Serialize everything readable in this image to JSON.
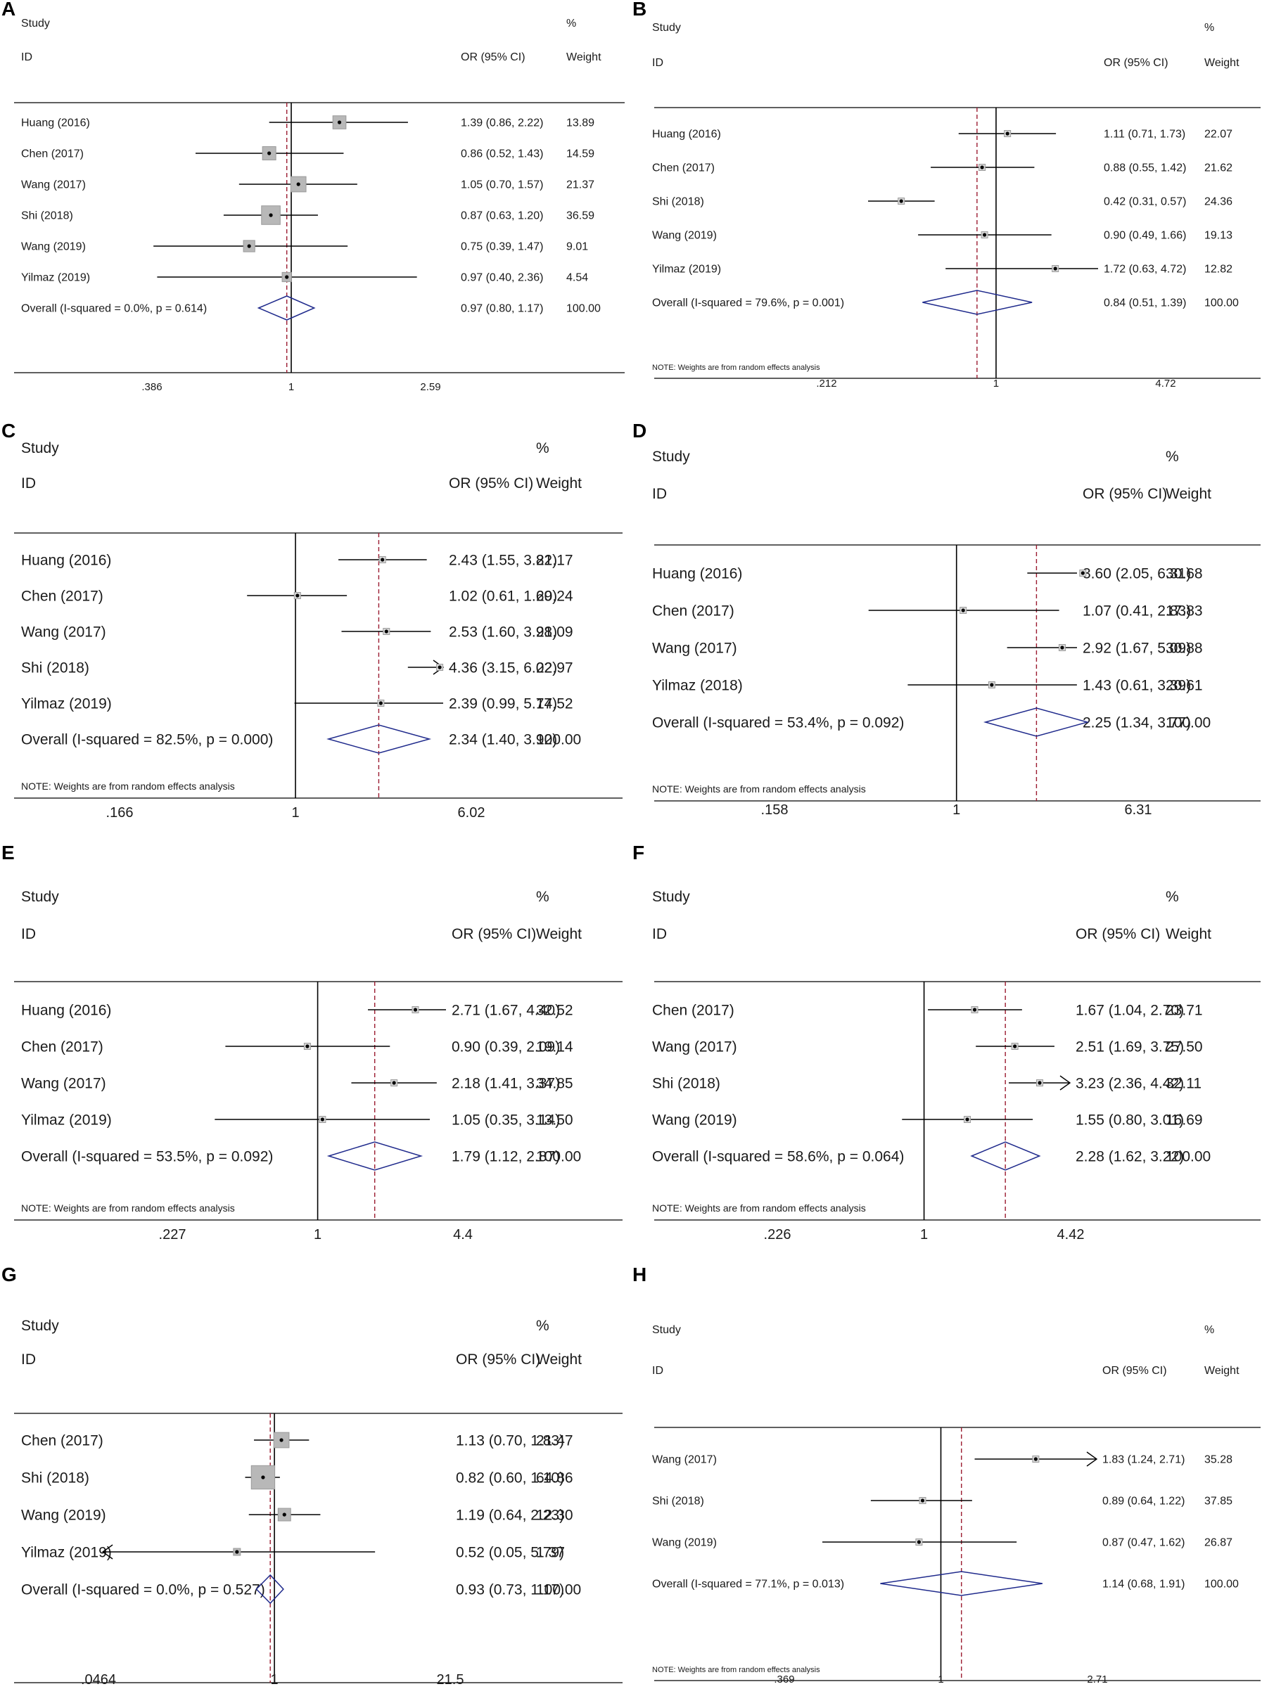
{
  "chart_data": [
    {
      "type": "forest",
      "panel": "A",
      "style": "small",
      "headers": {
        "study": "Study",
        "id": "ID",
        "or": "OR (95% CI)",
        "pct": "%",
        "weight": "Weight"
      },
      "studies": [
        {
          "name": "Huang (2016)",
          "or": 1.39,
          "lo": 0.86,
          "hi": 2.22,
          "label": "1.39 (0.86, 2.22)",
          "weight": 13.89,
          "weight_label": "13.89",
          "marker": "box"
        },
        {
          "name": "Chen (2017)",
          "or": 0.86,
          "lo": 0.52,
          "hi": 1.43,
          "label": "0.86 (0.52, 1.43)",
          "weight": 14.59,
          "weight_label": "14.59",
          "marker": "box"
        },
        {
          "name": "Wang (2017)",
          "or": 1.05,
          "lo": 0.7,
          "hi": 1.57,
          "label": "1.05 (0.70, 1.57)",
          "weight": 21.37,
          "weight_label": "21.37",
          "marker": "box"
        },
        {
          "name": "Shi (2018)",
          "or": 0.87,
          "lo": 0.63,
          "hi": 1.2,
          "label": "0.87 (0.63, 1.20)",
          "weight": 36.59,
          "weight_label": "36.59",
          "marker": "box"
        },
        {
          "name": "Wang (2019)",
          "or": 0.75,
          "lo": 0.39,
          "hi": 1.47,
          "label": "0.75 (0.39, 1.47)",
          "weight": 9.01,
          "weight_label": "9.01",
          "marker": "box"
        },
        {
          "name": "Yilmaz (2019)",
          "or": 0.97,
          "lo": 0.4,
          "hi": 2.36,
          "label": "0.97 (0.40, 2.36)",
          "weight": 4.54,
          "weight_label": "4.54",
          "marker": "box"
        }
      ],
      "overall": {
        "label": "Overall  (I-squared = 0.0%, p = 0.614)",
        "or": 0.97,
        "lo": 0.8,
        "hi": 1.17,
        "or_label": "0.97 (0.80, 1.17)",
        "weight_label": "100.00"
      },
      "note": "",
      "axis": {
        "min": 0.386,
        "max": 2.59,
        "ticks": [
          ".386",
          "1",
          "2.59"
        ]
      }
    },
    {
      "type": "forest",
      "panel": "B",
      "style": "small",
      "headers": {
        "study": "Study",
        "id": "ID",
        "or": "OR (95% CI)",
        "pct": "%",
        "weight": "Weight"
      },
      "studies": [
        {
          "name": "Huang (2016)",
          "or": 1.11,
          "lo": 0.71,
          "hi": 1.73,
          "label": "1.11 (0.71, 1.73)",
          "weight": 22.07,
          "weight_label": "22.07",
          "marker": "dot"
        },
        {
          "name": "Chen (2017)",
          "or": 0.88,
          "lo": 0.55,
          "hi": 1.42,
          "label": "0.88 (0.55, 1.42)",
          "weight": 21.62,
          "weight_label": "21.62",
          "marker": "dot"
        },
        {
          "name": "Shi (2018)",
          "or": 0.42,
          "lo": 0.31,
          "hi": 0.57,
          "label": "0.42 (0.31, 0.57)",
          "weight": 24.36,
          "weight_label": "24.36",
          "marker": "dot"
        },
        {
          "name": "Wang (2019)",
          "or": 0.9,
          "lo": 0.49,
          "hi": 1.66,
          "label": "0.90 (0.49, 1.66)",
          "weight": 19.13,
          "weight_label": "19.13",
          "marker": "dot"
        },
        {
          "name": "Yilmaz (2019)",
          "or": 1.72,
          "lo": 0.63,
          "hi": 4.72,
          "label": "1.72 (0.63, 4.72)",
          "weight": 12.82,
          "weight_label": "12.82",
          "marker": "dot"
        }
      ],
      "overall": {
        "label": "Overall  (I-squared = 79.6%, p = 0.001)",
        "or": 0.84,
        "lo": 0.51,
        "hi": 1.39,
        "or_label": "0.84 (0.51, 1.39)",
        "weight_label": "100.00"
      },
      "note": "NOTE: Weights are from random effects analysis",
      "axis": {
        "min": 0.212,
        "max": 4.72,
        "ticks": [
          ".212",
          "1",
          "4.72"
        ]
      }
    },
    {
      "type": "forest",
      "panel": "C",
      "style": "large",
      "headers": {
        "study": "Study",
        "id": "ID",
        "or": "OR (95% CI)",
        "pct": "%",
        "weight": "Weight"
      },
      "studies": [
        {
          "name": "Huang (2016)",
          "or": 2.43,
          "lo": 1.55,
          "hi": 3.82,
          "label": "2.43 (1.55, 3.82)",
          "weight": 21.17,
          "weight_label": "21.17",
          "marker": "dot"
        },
        {
          "name": "Chen (2017)",
          "or": 1.02,
          "lo": 0.61,
          "hi": 1.69,
          "label": "1.02 (0.61, 1.69)",
          "weight": 20.24,
          "weight_label": "20.24",
          "marker": "dot"
        },
        {
          "name": "Wang (2017)",
          "or": 2.53,
          "lo": 1.6,
          "hi": 3.98,
          "label": "2.53 (1.60, 3.98)",
          "weight": 21.09,
          "weight_label": "21.09",
          "marker": "dot"
        },
        {
          "name": "Shi (2018)",
          "or": 4.36,
          "lo": 3.15,
          "hi": 6.02,
          "label": "4.36 (3.15, 6.02)",
          "weight": 22.97,
          "weight_label": "22.97",
          "marker": "dot",
          "arrow": "right"
        },
        {
          "name": "Yilmaz (2019)",
          "or": 2.39,
          "lo": 0.99,
          "hi": 5.77,
          "label": "2.39 (0.99, 5.77)",
          "weight": 14.52,
          "weight_label": "14.52",
          "marker": "dot"
        }
      ],
      "overall": {
        "label": "Overall  (I-squared = 82.5%, p = 0.000)",
        "or": 2.34,
        "lo": 1.4,
        "hi": 3.92,
        "or_label": "2.34 (1.40, 3.92)",
        "weight_label": "100.00"
      },
      "note": "NOTE: Weights are from random effects analysis",
      "axis": {
        "min": 0.166,
        "max": 6.02,
        "ticks": [
          ".166",
          "1",
          "6.02"
        ]
      }
    },
    {
      "type": "forest",
      "panel": "D",
      "style": "large",
      "headers": {
        "study": "Study",
        "id": "ID",
        "or": "OR (95% CI)",
        "pct": "%",
        "weight": "Weight"
      },
      "studies": [
        {
          "name": "Huang (2016)",
          "or": 3.6,
          "lo": 2.05,
          "hi": 6.31,
          "label": "3.60 (2.05, 6.31)",
          "weight": 30.68,
          "weight_label": "30.68",
          "marker": "dot"
        },
        {
          "name": "Chen (2017)",
          "or": 1.07,
          "lo": 0.41,
          "hi": 2.83,
          "label": "1.07 (0.41, 2.83)",
          "weight": 17.83,
          "weight_label": "17.83",
          "marker": "dot"
        },
        {
          "name": "Wang (2017)",
          "or": 2.92,
          "lo": 1.67,
          "hi": 5.09,
          "label": "2.92 (1.67, 5.09)",
          "weight": 30.88,
          "weight_label": "30.88",
          "marker": "dot"
        },
        {
          "name": "Yilmaz (2018)",
          "or": 1.43,
          "lo": 0.61,
          "hi": 3.39,
          "label": "1.43 (0.61, 3.39)",
          "weight": 20.61,
          "weight_label": "20.61",
          "marker": "dot"
        }
      ],
      "overall": {
        "label": "Overall  (I-squared = 53.4%, p = 0.092)",
        "or": 2.25,
        "lo": 1.34,
        "hi": 3.77,
        "or_label": "2.25 (1.34, 3.77)",
        "weight_label": "100.00"
      },
      "note": "NOTE: Weights are from random effects analysis",
      "axis": {
        "min": 0.158,
        "max": 6.31,
        "ticks": [
          ".158",
          "1",
          "6.31"
        ]
      }
    },
    {
      "type": "forest",
      "panel": "E",
      "style": "large",
      "headers": {
        "study": "Study",
        "id": "ID",
        "or": "OR (95% CI)",
        "pct": "%",
        "weight": "Weight"
      },
      "studies": [
        {
          "name": "Huang (2016)",
          "or": 2.71,
          "lo": 1.67,
          "hi": 4.4,
          "label": "2.71 (1.67, 4.40)",
          "weight": 32.52,
          "weight_label": "32.52",
          "marker": "dot"
        },
        {
          "name": "Chen (2017)",
          "or": 0.9,
          "lo": 0.39,
          "hi": 2.09,
          "label": "0.90 (0.39, 2.09)",
          "weight": 19.14,
          "weight_label": "19.14",
          "marker": "dot"
        },
        {
          "name": "Wang (2017)",
          "or": 2.18,
          "lo": 1.41,
          "hi": 3.37,
          "label": "2.18 (1.41, 3.37)",
          "weight": 34.85,
          "weight_label": "34.85",
          "marker": "dot"
        },
        {
          "name": "Yilmaz (2019)",
          "or": 1.05,
          "lo": 0.35,
          "hi": 3.14,
          "label": "1.05 (0.35, 3.14)",
          "weight": 13.5,
          "weight_label": "13.50",
          "marker": "dot"
        }
      ],
      "overall": {
        "label": "Overall  (I-squared = 53.5%, p = 0.092)",
        "or": 1.79,
        "lo": 1.12,
        "hi": 2.87,
        "or_label": "1.79 (1.12, 2.87)",
        "weight_label": "100.00"
      },
      "note": "NOTE: Weights are from random effects analysis",
      "axis": {
        "min": 0.227,
        "max": 4.4,
        "ticks": [
          ".227",
          "1",
          "4.4"
        ]
      }
    },
    {
      "type": "forest",
      "panel": "F",
      "style": "large",
      "headers": {
        "study": "Study",
        "id": "ID",
        "or": "OR (95% CI)",
        "pct": "%",
        "weight": "Weight"
      },
      "studies": [
        {
          "name": "Chen (2017)",
          "or": 1.67,
          "lo": 1.04,
          "hi": 2.7,
          "label": "1.67 (1.04, 2.70)",
          "weight": 23.71,
          "weight_label": "23.71",
          "marker": "dot"
        },
        {
          "name": "Wang (2017)",
          "or": 2.51,
          "lo": 1.69,
          "hi": 3.75,
          "label": "2.51 (1.69, 3.75)",
          "weight": 27.5,
          "weight_label": "27.50",
          "marker": "dot"
        },
        {
          "name": "Shi (2018)",
          "or": 3.23,
          "lo": 2.36,
          "hi": 4.42,
          "label": "3.23 (2.36, 4.42)",
          "weight": 32.11,
          "weight_label": "32.11",
          "marker": "dot",
          "arrow": "right"
        },
        {
          "name": "Wang (2019)",
          "or": 1.55,
          "lo": 0.8,
          "hi": 3.01,
          "label": "1.55 (0.80, 3.01)",
          "weight": 16.69,
          "weight_label": "16.69",
          "marker": "dot"
        }
      ],
      "overall": {
        "label": "Overall  (I-squared = 58.6%, p = 0.064)",
        "or": 2.28,
        "lo": 1.62,
        "hi": 3.22,
        "or_label": "2.28 (1.62, 3.22)",
        "weight_label": "100.00"
      },
      "note": "NOTE: Weights are from random effects analysis",
      "axis": {
        "min": 0.226,
        "max": 4.42,
        "ticks": [
          ".226",
          "1",
          "4.42"
        ]
      }
    },
    {
      "type": "forest",
      "panel": "G",
      "style": "large",
      "headers": {
        "study": "Study",
        "id": "ID",
        "or": "OR (95% CI)",
        "pct": "%",
        "weight": "Weight"
      },
      "studies": [
        {
          "name": "Chen (2017)",
          "or": 1.13,
          "lo": 0.7,
          "hi": 1.83,
          "label": "1.13 (0.70, 1.83)",
          "weight": 21.47,
          "weight_label": "21.47",
          "marker": "box"
        },
        {
          "name": "Shi (2018)",
          "or": 0.82,
          "lo": 0.6,
          "hi": 1.1,
          "label": "0.82 (0.60, 1.10)",
          "weight": 64.86,
          "weight_label": "64.86",
          "marker": "box"
        },
        {
          "name": "Wang (2019)",
          "or": 1.19,
          "lo": 0.64,
          "hi": 2.23,
          "label": "1.19 (0.64, 2.23)",
          "weight": 12.3,
          "weight_label": "12.30",
          "marker": "box"
        },
        {
          "name": "Yilmaz (2019)",
          "or": 0.52,
          "lo": 0.05,
          "hi": 5.79,
          "label": "0.52 (0.05, 5.79)",
          "weight": 1.37,
          "weight_label": "1.37",
          "marker": "box",
          "arrow": "left"
        }
      ],
      "overall": {
        "label": "Overall  (I-squared = 0.0%, p = 0.527)",
        "or": 0.93,
        "lo": 0.73,
        "hi": 1.17,
        "or_label": "0.93 (0.73, 1.17)",
        "weight_label": "100.00"
      },
      "note": "",
      "axis": {
        "min": 0.0464,
        "max": 21.5,
        "ticks": [
          ".0464",
          "1",
          "21.5"
        ]
      }
    },
    {
      "type": "forest",
      "panel": "H",
      "style": "small",
      "headers": {
        "study": "Study",
        "id": "ID",
        "or": "OR (95% CI)",
        "pct": "%",
        "weight": "Weight"
      },
      "studies": [
        {
          "name": "Wang (2017)",
          "or": 1.83,
          "lo": 1.24,
          "hi": 2.71,
          "label": "1.83 (1.24, 2.71)",
          "weight": 35.28,
          "weight_label": "35.28",
          "marker": "dot",
          "arrow": "right"
        },
        {
          "name": "Shi (2018)",
          "or": 0.89,
          "lo": 0.64,
          "hi": 1.22,
          "label": "0.89 (0.64, 1.22)",
          "weight": 37.85,
          "weight_label": "37.85",
          "marker": "dot"
        },
        {
          "name": "Wang (2019)",
          "or": 0.87,
          "lo": 0.47,
          "hi": 1.62,
          "label": "0.87 (0.47, 1.62)",
          "weight": 26.87,
          "weight_label": "26.87",
          "marker": "dot"
        }
      ],
      "overall": {
        "label": "Overall  (I-squared = 77.1%, p = 0.013)",
        "or": 1.14,
        "lo": 0.68,
        "hi": 1.91,
        "or_label": "1.14 (0.68, 1.91)",
        "weight_label": "100.00"
      },
      "note": "NOTE: Weights are from random effects analysis",
      "axis": {
        "min": 0.369,
        "max": 2.71,
        "ticks": [
          ".369",
          "1",
          "2.71"
        ]
      }
    }
  ],
  "colors": {
    "line": "#000000",
    "diamond": "#1f2a8c",
    "ref_dashed": "#9b1b30",
    "box_fill": "#b8b8b8",
    "box_stroke": "#9a9a9a"
  }
}
